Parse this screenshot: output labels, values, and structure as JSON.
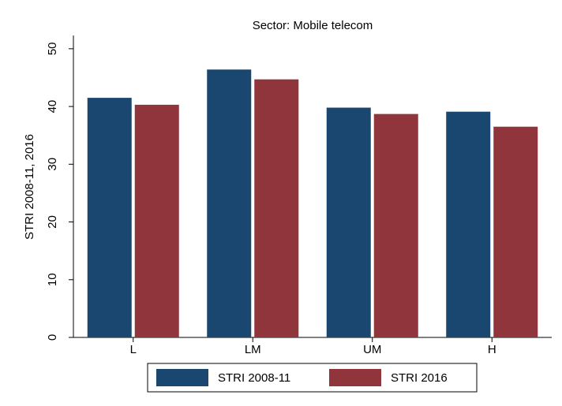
{
  "chart_data": {
    "type": "bar",
    "title": "Sector: Mobile telecom",
    "y_label": "STRI 2008-11, 2016",
    "categories": [
      "L",
      "LM",
      "UM",
      "H"
    ],
    "series": [
      {
        "name": "STRI 2008-11",
        "color": "#1a476f",
        "values": [
          41.5,
          46.4,
          39.8,
          39.1
        ]
      },
      {
        "name": "STRI 2016",
        "color": "#90353b",
        "values": [
          40.3,
          44.7,
          38.7,
          36.5
        ]
      }
    ],
    "ylim": [
      0,
      52.3
    ],
    "yticks": [
      0,
      10,
      20,
      30,
      40,
      50
    ],
    "grid": false,
    "legend": "bottom"
  }
}
